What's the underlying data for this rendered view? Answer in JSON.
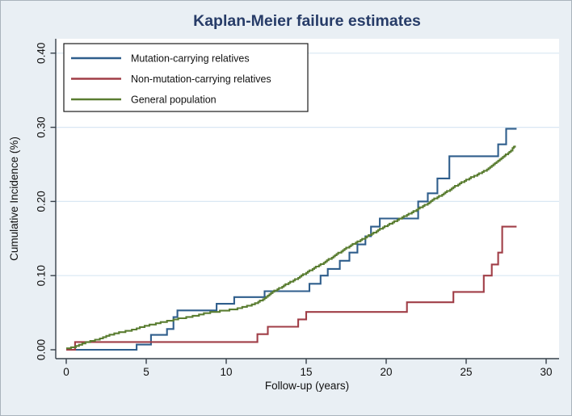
{
  "title": "Kaplan-Meier failure estimates",
  "colors": {
    "title": "#273c68",
    "background": "#e9eff4",
    "plot_background": "#ffffff",
    "grid": "#d9e7f3",
    "axis": "#37404a",
    "legend_border": "#1a1a1a",
    "series_blue": "#2f5e8c",
    "series_red": "#a03e47",
    "series_green": "#5a7d31"
  },
  "chart_data": {
    "type": "line",
    "subtype": "kaplan-meier-step",
    "title": "Kaplan-Meier failure estimates",
    "xlabel": "Follow-up (years)",
    "ylabel": "Cumulative Incidence (%)",
    "xlim": [
      0,
      30
    ],
    "ylim": [
      0,
      0.4
    ],
    "grid": "horizontal",
    "legend_position": "top-left",
    "xticks": [
      {
        "value": 0,
        "label": "0"
      },
      {
        "value": 5,
        "label": "5"
      },
      {
        "value": 10,
        "label": "10"
      },
      {
        "value": 15,
        "label": "15"
      },
      {
        "value": 20,
        "label": "20"
      },
      {
        "value": 25,
        "label": "25"
      },
      {
        "value": 30,
        "label": "30"
      }
    ],
    "yticks": [
      {
        "value": 0.0,
        "label": "0.00"
      },
      {
        "value": 0.1,
        "label": "0.10"
      },
      {
        "value": 0.2,
        "label": "0.20"
      },
      {
        "value": 0.3,
        "label": "0.30"
      },
      {
        "value": 0.4,
        "label": "0.40"
      }
    ],
    "series": [
      {
        "name": "Mutation-carrying relatives",
        "color": "#2f5e8c",
        "style": "step",
        "points": [
          [
            0,
            0
          ],
          [
            4.4,
            0.007
          ],
          [
            5.3,
            0.02
          ],
          [
            6.3,
            0.028
          ],
          [
            6.7,
            0.044
          ],
          [
            6.95,
            0.053
          ],
          [
            9.4,
            0.062
          ],
          [
            10.5,
            0.071
          ],
          [
            12.4,
            0.079
          ],
          [
            15.2,
            0.089
          ],
          [
            15.9,
            0.1
          ],
          [
            16.35,
            0.109
          ],
          [
            17.1,
            0.12
          ],
          [
            17.7,
            0.131
          ],
          [
            18.2,
            0.142
          ],
          [
            18.7,
            0.153
          ],
          [
            19.05,
            0.166
          ],
          [
            19.6,
            0.177
          ],
          [
            22.0,
            0.2
          ],
          [
            22.6,
            0.211
          ],
          [
            23.2,
            0.231
          ],
          [
            23.95,
            0.261
          ],
          [
            27.0,
            0.277
          ],
          [
            27.5,
            0.298
          ],
          [
            28.15,
            0.298
          ]
        ]
      },
      {
        "name": "Non-mutation-carrying relatives",
        "color": "#a03e47",
        "style": "step",
        "points": [
          [
            0,
            0
          ],
          [
            0.55,
            0.0105
          ],
          [
            11.95,
            0.021
          ],
          [
            12.6,
            0.031
          ],
          [
            14.5,
            0.041
          ],
          [
            15.0,
            0.051
          ],
          [
            21.3,
            0.064
          ],
          [
            24.2,
            0.078
          ],
          [
            26.1,
            0.1
          ],
          [
            26.6,
            0.115
          ],
          [
            27.0,
            0.131
          ],
          [
            27.25,
            0.166
          ],
          [
            28.15,
            0.166
          ]
        ]
      },
      {
        "name": "General population",
        "color": "#5a7d31",
        "style": "micro-step",
        "points": [
          [
            0,
            0.002
          ],
          [
            0.5,
            0.005
          ],
          [
            1,
            0.009
          ],
          [
            1.5,
            0.012
          ],
          [
            2,
            0.015
          ],
          [
            2.5,
            0.019
          ],
          [
            3,
            0.0225
          ],
          [
            3.5,
            0.025
          ],
          [
            4,
            0.027
          ],
          [
            4.5,
            0.03
          ],
          [
            5,
            0.033
          ],
          [
            5.5,
            0.0355
          ],
          [
            6,
            0.038
          ],
          [
            6.5,
            0.04
          ],
          [
            7,
            0.0425
          ],
          [
            7.5,
            0.0445
          ],
          [
            8,
            0.0465
          ],
          [
            8.5,
            0.049
          ],
          [
            9,
            0.051
          ],
          [
            9.5,
            0.0525
          ],
          [
            10,
            0.054
          ],
          [
            10.5,
            0.0555
          ],
          [
            11,
            0.058
          ],
          [
            11.5,
            0.061
          ],
          [
            12,
            0.065
          ],
          [
            12.5,
            0.072
          ],
          [
            13,
            0.08
          ],
          [
            13.5,
            0.086
          ],
          [
            14,
            0.092
          ],
          [
            14.5,
            0.098
          ],
          [
            15,
            0.105
          ],
          [
            15.5,
            0.111
          ],
          [
            16,
            0.117
          ],
          [
            16.5,
            0.124
          ],
          [
            17,
            0.131
          ],
          [
            17.5,
            0.138
          ],
          [
            18,
            0.144
          ],
          [
            18.5,
            0.15
          ],
          [
            19,
            0.156
          ],
          [
            19.5,
            0.162
          ],
          [
            20,
            0.168
          ],
          [
            20.5,
            0.174
          ],
          [
            21,
            0.179
          ],
          [
            21.5,
            0.185
          ],
          [
            22,
            0.191
          ],
          [
            22.5,
            0.197
          ],
          [
            23,
            0.204
          ],
          [
            23.5,
            0.21
          ],
          [
            24,
            0.217
          ],
          [
            24.5,
            0.224
          ],
          [
            25,
            0.23
          ],
          [
            25.5,
            0.235
          ],
          [
            26,
            0.24
          ],
          [
            26.5,
            0.247
          ],
          [
            27,
            0.255
          ],
          [
            27.4,
            0.262
          ],
          [
            27.7,
            0.268
          ],
          [
            27.9,
            0.272
          ],
          [
            28.05,
            0.276
          ]
        ]
      }
    ]
  }
}
